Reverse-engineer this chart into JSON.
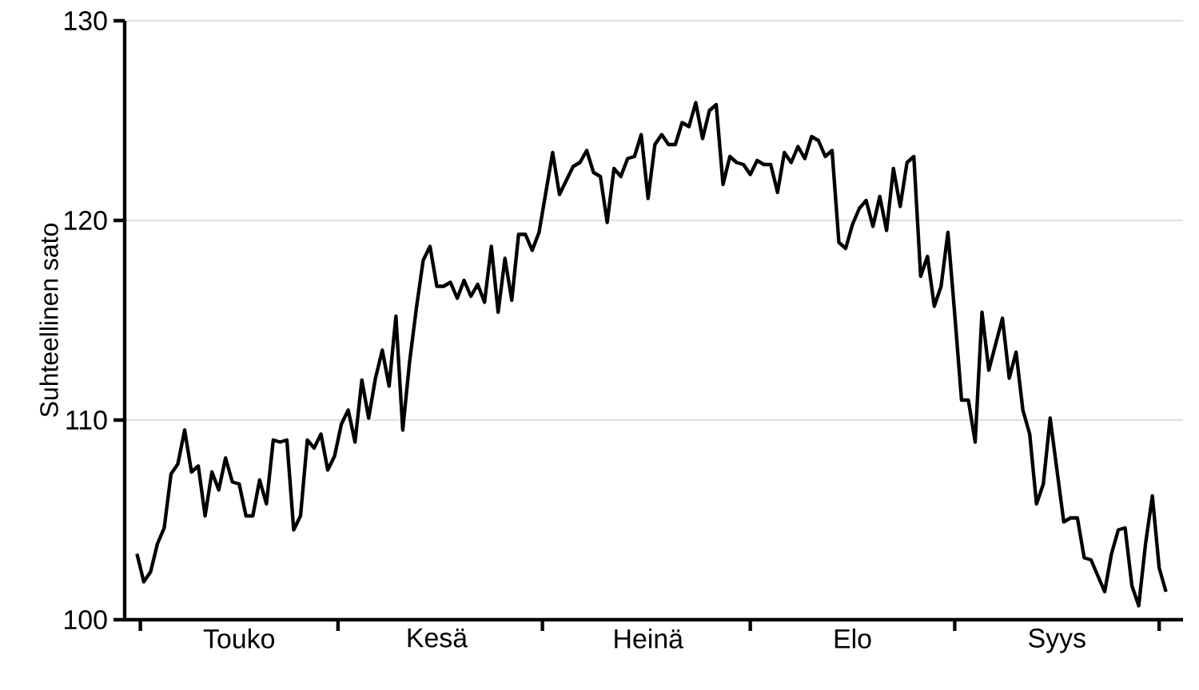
{
  "chart_data": {
    "type": "line",
    "ylabel": "Suhteellinen sato",
    "color": "#000000",
    "line_style": "solid",
    "grid": "y",
    "categories": [
      null,
      null,
      null,
      null,
      null,
      null,
      null,
      null,
      null,
      null,
      null,
      null,
      null,
      null,
      null,
      "Touko",
      null,
      null,
      null,
      null,
      null,
      null,
      null,
      null,
      null,
      null,
      null,
      null,
      null,
      null,
      null,
      null,
      null,
      null,
      null,
      null,
      null,
      null,
      null,
      null,
      null,
      null,
      null,
      null,
      "Kesä",
      null,
      null,
      null,
      null,
      null,
      null,
      null,
      null,
      null,
      null,
      null,
      null,
      null,
      null,
      null,
      null,
      null,
      null,
      null,
      null,
      null,
      null,
      null,
      null,
      null,
      null,
      null,
      null,
      null,
      null,
      "Heinä",
      null,
      null,
      null,
      null,
      null,
      null,
      null,
      null,
      null,
      null,
      null,
      null,
      null,
      null,
      null,
      null,
      null,
      null,
      null,
      null,
      null,
      null,
      null,
      null,
      null,
      null,
      null,
      null,
      null,
      "Elo",
      null,
      null,
      null,
      null,
      null,
      null,
      null,
      null,
      null,
      null,
      null,
      null,
      null,
      null,
      null,
      null,
      null,
      null,
      null,
      null,
      null,
      null,
      null,
      null,
      null,
      null,
      null,
      null,
      null,
      "Syys",
      null,
      null,
      null,
      null,
      null,
      null,
      null,
      null,
      null,
      null,
      null,
      null,
      null,
      null,
      null,
      null
    ],
    "values": [
      103.3,
      101.9,
      102.4,
      103.8,
      104.6,
      107.3,
      107.8,
      109.5,
      107.4,
      107.7,
      105.2,
      107.4,
      106.5,
      108.1,
      106.9,
      106.8,
      105.2,
      105.2,
      107.0,
      105.8,
      109.0,
      108.9,
      109.0,
      104.5,
      105.2,
      109.0,
      108.6,
      109.3,
      107.5,
      108.2,
      109.8,
      110.5,
      108.9,
      112.0,
      110.1,
      112.1,
      113.5,
      111.7,
      115.2,
      109.5,
      112.9,
      115.6,
      118.0,
      118.7,
      116.7,
      116.7,
      116.9,
      116.1,
      117.0,
      116.2,
      116.8,
      115.9,
      118.7,
      115.4,
      118.1,
      116.0,
      119.3,
      119.3,
      118.5,
      119.4,
      121.4,
      123.4,
      121.3,
      122.0,
      122.7,
      122.9,
      123.5,
      122.4,
      122.2,
      119.9,
      122.6,
      122.2,
      123.1,
      123.2,
      124.3,
      121.1,
      123.8,
      124.3,
      123.8,
      123.8,
      124.9,
      124.7,
      125.9,
      124.1,
      125.5,
      125.8,
      121.8,
      123.2,
      122.9,
      122.8,
      122.3,
      123.0,
      122.8,
      122.8,
      121.4,
      123.4,
      122.9,
      123.7,
      123.1,
      124.2,
      124.0,
      123.2,
      123.5,
      118.9,
      118.6,
      119.8,
      120.6,
      121.0,
      119.7,
      121.2,
      119.5,
      122.6,
      120.7,
      122.9,
      123.2,
      117.2,
      118.2,
      115.7,
      116.7,
      119.4,
      115.3,
      111.0,
      111.0,
      108.9,
      115.4,
      112.5,
      113.8,
      115.1,
      112.1,
      113.4,
      110.5,
      109.3,
      105.8,
      106.8,
      110.1,
      107.5,
      104.9,
      105.1,
      105.1,
      103.1,
      103.0,
      102.2,
      101.4,
      103.3,
      104.5,
      104.6,
      101.7,
      100.7,
      103.8,
      106.2,
      102.6,
      101.4
    ],
    "ylim": [
      100,
      130
    ],
    "yticks": [
      100,
      110,
      120,
      130
    ]
  }
}
